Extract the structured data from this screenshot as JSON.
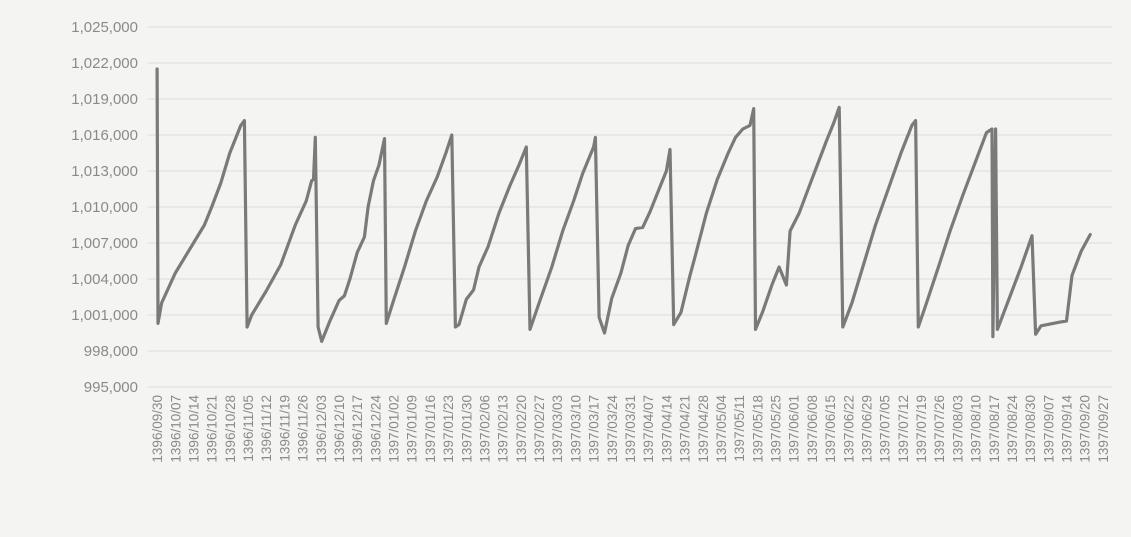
{
  "chart_data": {
    "type": "line",
    "title": "",
    "xlabel": "",
    "ylabel": "",
    "grid": true,
    "legend": "none",
    "ylim": [
      995000,
      1025000
    ],
    "yticks": [
      {
        "value": 1025000,
        "label": "1,025,000"
      },
      {
        "value": 1022000,
        "label": "1,022,000"
      },
      {
        "value": 1019000,
        "label": "1,019,000"
      },
      {
        "value": 1016000,
        "label": "1,016,000"
      },
      {
        "value": 1013000,
        "label": "1,013,000"
      },
      {
        "value": 1010000,
        "label": "1,010,000"
      },
      {
        "value": 1007000,
        "label": "1,007,000"
      },
      {
        "value": 1004000,
        "label": "1,004,000"
      },
      {
        "value": 1001000,
        "label": "1,001,000"
      },
      {
        "value": 998000,
        "label": "998,000"
      },
      {
        "value": 995000,
        "label": "995,000"
      }
    ],
    "xticks": [
      "1396/09/30",
      "1396/10/07",
      "1396/10/14",
      "1396/10/21",
      "1396/10/28",
      "1396/11/05",
      "1396/11/12",
      "1396/11/19",
      "1396/11/26",
      "1396/12/03",
      "1396/12/10",
      "1396/12/17",
      "1396/12/24",
      "1397/01/02",
      "1397/01/09",
      "1397/01/16",
      "1397/01/23",
      "1397/01/30",
      "1397/02/06",
      "1397/02/13",
      "1397/02/20",
      "1397/02/27",
      "1397/03/03",
      "1397/03/10",
      "1397/03/17",
      "1397/03/24",
      "1397/03/31",
      "1397/04/07",
      "1397/04/14",
      "1397/04/21",
      "1397/04/28",
      "1397/05/04",
      "1397/05/11",
      "1397/05/18",
      "1397/05/25",
      "1397/06/01",
      "1397/06/08",
      "1397/06/15",
      "1397/06/22",
      "1397/06/29",
      "1397/07/05",
      "1397/07/12",
      "1397/07/19",
      "1397/07/26",
      "1397/08/03",
      "1397/08/10",
      "1397/08/17",
      "1397/08/24",
      "1397/08/30",
      "1397/09/07",
      "1397/09/14",
      "1397/09/20",
      "1397/09/27"
    ],
    "series": [
      {
        "color": "#7a7a7a",
        "points": [
          [
            0,
            1021500
          ],
          [
            0.05,
            1000300
          ],
          [
            0.25,
            1002000
          ],
          [
            1,
            1004500
          ],
          [
            2,
            1007000
          ],
          [
            2.6,
            1008500
          ],
          [
            3,
            1010000
          ],
          [
            3.5,
            1012000
          ],
          [
            4,
            1014500
          ],
          [
            4.6,
            1016800
          ],
          [
            4.8,
            1017200
          ],
          [
            4.95,
            1000000
          ],
          [
            5.2,
            1001000
          ],
          [
            6,
            1003000
          ],
          [
            6.8,
            1005200
          ],
          [
            7.6,
            1008500
          ],
          [
            8.2,
            1010500
          ],
          [
            8.5,
            1012200
          ],
          [
            8.6,
            1012300
          ],
          [
            8.7,
            1015800
          ],
          [
            8.85,
            1000000
          ],
          [
            9.05,
            998800
          ],
          [
            9.5,
            1000500
          ],
          [
            10,
            1002200
          ],
          [
            10.3,
            1002600
          ],
          [
            10.6,
            1004000
          ],
          [
            11,
            1006200
          ],
          [
            11.4,
            1007500
          ],
          [
            11.6,
            1010000
          ],
          [
            11.9,
            1012200
          ],
          [
            12.2,
            1013500
          ],
          [
            12.5,
            1015700
          ],
          [
            12.6,
            1000300
          ],
          [
            13,
            1002200
          ],
          [
            13.6,
            1005000
          ],
          [
            14.2,
            1008000
          ],
          [
            14.8,
            1010500
          ],
          [
            15.4,
            1012500
          ],
          [
            15.9,
            1014600
          ],
          [
            16.2,
            1016000
          ],
          [
            16.4,
            1000000
          ],
          [
            16.6,
            1000200
          ],
          [
            17,
            1002300
          ],
          [
            17.4,
            1003100
          ],
          [
            17.7,
            1005000
          ],
          [
            18.2,
            1006700
          ],
          [
            18.8,
            1009500
          ],
          [
            19.4,
            1011800
          ],
          [
            19.9,
            1013500
          ],
          [
            20.3,
            1015000
          ],
          [
            20.5,
            999800
          ],
          [
            21,
            1002000
          ],
          [
            21.7,
            1005000
          ],
          [
            22.3,
            1008000
          ],
          [
            22.9,
            1010500
          ],
          [
            23.4,
            1012800
          ],
          [
            24,
            1015000
          ],
          [
            24.1,
            1015800
          ],
          [
            24.3,
            1000800
          ],
          [
            24.6,
            999500
          ],
          [
            25,
            1002400
          ],
          [
            25.5,
            1004500
          ],
          [
            25.9,
            1006800
          ],
          [
            26.3,
            1008200
          ],
          [
            26.7,
            1008300
          ],
          [
            27.1,
            1009600
          ],
          [
            27.6,
            1011500
          ],
          [
            28,
            1013000
          ],
          [
            28.2,
            1014800
          ],
          [
            28.4,
            1000200
          ],
          [
            28.8,
            1001200
          ],
          [
            29.3,
            1004300
          ],
          [
            29.6,
            1006000
          ],
          [
            30.2,
            1009500
          ],
          [
            30.8,
            1012300
          ],
          [
            31.4,
            1014500
          ],
          [
            31.8,
            1015800
          ],
          [
            32.2,
            1016500
          ],
          [
            32.6,
            1016800
          ],
          [
            32.8,
            1018200
          ],
          [
            32.9,
            999800
          ],
          [
            33.3,
            1001300
          ],
          [
            33.8,
            1003500
          ],
          [
            34.2,
            1005000
          ],
          [
            34.6,
            1003500
          ],
          [
            34.8,
            1008000
          ],
          [
            35.3,
            1009500
          ],
          [
            35.8,
            1011500
          ],
          [
            36.3,
            1013500
          ],
          [
            36.8,
            1015500
          ],
          [
            37.2,
            1017000
          ],
          [
            37.5,
            1018300
          ],
          [
            37.7,
            1000000
          ],
          [
            38.2,
            1002000
          ],
          [
            38.8,
            1005000
          ],
          [
            39.5,
            1008500
          ],
          [
            40.2,
            1011500
          ],
          [
            40.9,
            1014500
          ],
          [
            41.5,
            1016800
          ],
          [
            41.7,
            1017200
          ],
          [
            41.85,
            1000000
          ],
          [
            42.3,
            1002000
          ],
          [
            43,
            1005200
          ],
          [
            43.6,
            1008000
          ],
          [
            44.3,
            1011000
          ],
          [
            45,
            1013800
          ],
          [
            45.6,
            1016200
          ],
          [
            45.9,
            1016500
          ],
          [
            45.95,
            999200
          ],
          [
            46.1,
            1016500
          ],
          [
            46.2,
            999800
          ],
          [
            46.5,
            1001000
          ],
          [
            47,
            1003000
          ],
          [
            47.5,
            1005000
          ],
          [
            48.1,
            1007600
          ],
          [
            48.3,
            999400
          ],
          [
            48.6,
            1000100
          ],
          [
            49.6,
            1000400
          ],
          [
            50,
            1000500
          ],
          [
            50.3,
            1004300
          ],
          [
            50.8,
            1006300
          ],
          [
            51.3,
            1007700
          ]
        ]
      }
    ]
  }
}
